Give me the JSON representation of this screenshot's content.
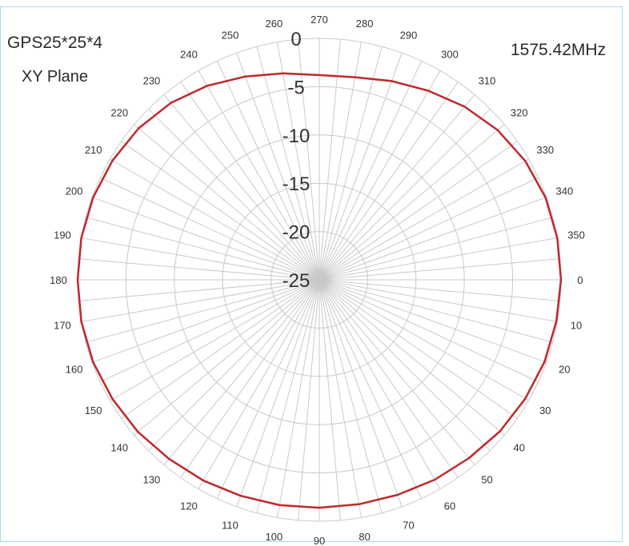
{
  "chart_data": {
    "type": "polar-line",
    "title_line1": "GPS25*25*4",
    "title_line2": "XY Plane",
    "frequency_label": "1575.42MHz",
    "radial_ticks": [
      0,
      -5,
      -10,
      -15,
      -20,
      -25
    ],
    "radial_range": [
      -25,
      0
    ],
    "angle_step_deg": 10,
    "angle_tick_labels": [
      "0",
      "10",
      "20",
      "30",
      "40",
      "50",
      "60",
      "70",
      "80",
      "90",
      "100",
      "110",
      "120",
      "130",
      "140",
      "150",
      "160",
      "170",
      "180",
      "190",
      "200",
      "210",
      "220",
      "230",
      "240",
      "250",
      "260",
      "270",
      "280",
      "290",
      "300",
      "310",
      "320",
      "330",
      "340",
      "350"
    ],
    "angle_direction": "clockwise",
    "angle_zero_position": "right",
    "grid": true,
    "series": [
      {
        "color": "#c0282d",
        "angles_deg": [
          0,
          10,
          20,
          30,
          40,
          50,
          60,
          70,
          80,
          90,
          100,
          110,
          120,
          130,
          140,
          150,
          160,
          170,
          180,
          190,
          200,
          210,
          220,
          230,
          240,
          250,
          260,
          270,
          280,
          290,
          300,
          310,
          320,
          330,
          340,
          350
        ],
        "values_db": [
          0.0,
          -0.1,
          -0.2,
          -0.4,
          -0.6,
          -0.9,
          -1.1,
          -1.3,
          -1.4,
          -1.4,
          -1.3,
          -1.2,
          -1.0,
          -0.8,
          -0.5,
          -0.3,
          -0.1,
          0.0,
          0.0,
          0.0,
          -0.1,
          -0.3,
          -0.6,
          -1.1,
          -1.8,
          -2.6,
          -3.3,
          -3.8,
          -3.7,
          -3.1,
          -2.4,
          -1.6,
          -0.9,
          -0.4,
          -0.1,
          0.0
        ]
      }
    ]
  }
}
